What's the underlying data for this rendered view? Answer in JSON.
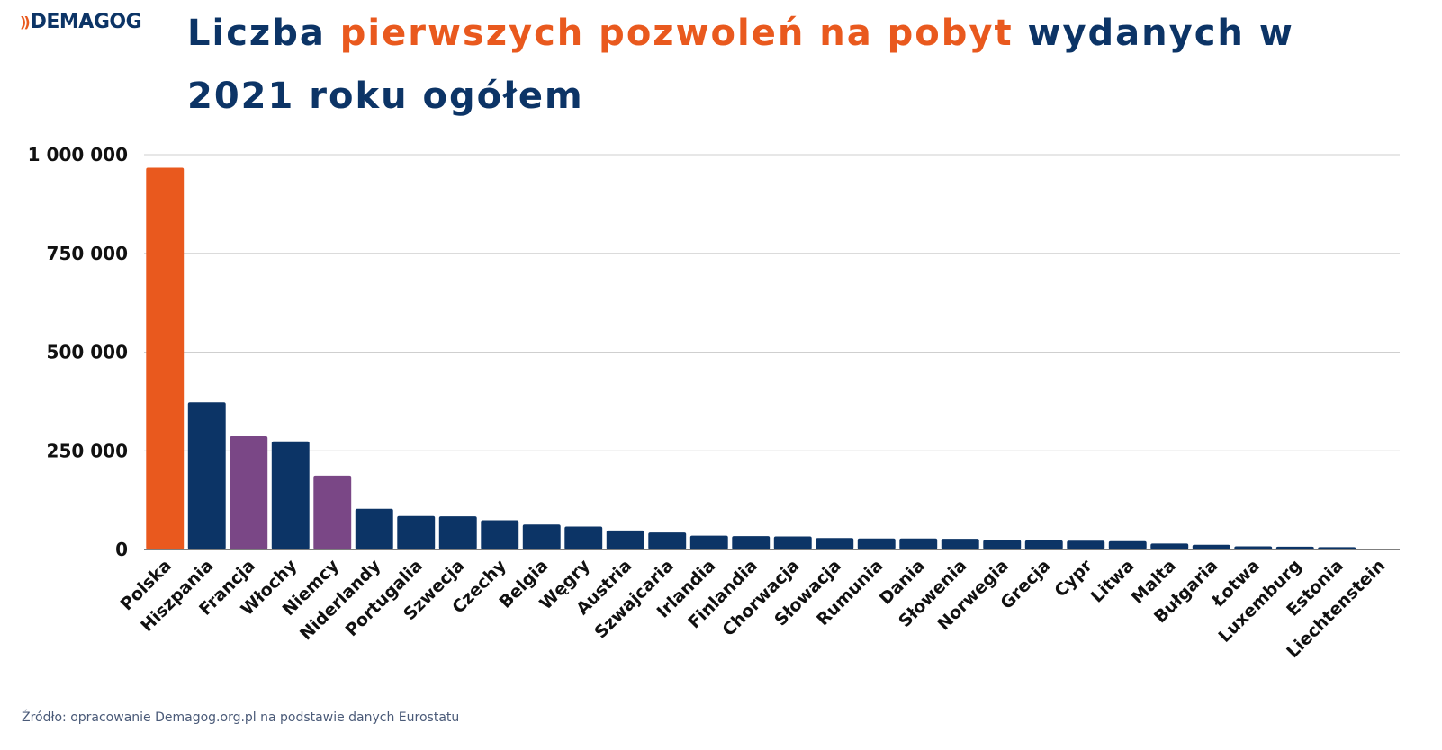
{
  "logo": {
    "mark": "))",
    "text": "DEMAGOG"
  },
  "title": {
    "part1": "Liczba ",
    "accent": "pierwszych pozwoleń na pobyt",
    "part2": " wydanych  w 2021 roku ogółem"
  },
  "colors": {
    "orange": "#e9591e",
    "navy": "#0c3466",
    "purple": "#7a4786",
    "grid": "#cfcfcf"
  },
  "source": "Źródło: opracowanie Demagog.org.pl na podstawie danych Eurostatu",
  "chart_data": {
    "type": "bar",
    "title": "Liczba pierwszych pozwoleń na pobyt wydanych  w 2021 roku ogółem",
    "xlabel": "",
    "ylabel": "",
    "ylim": [
      0,
      1000000
    ],
    "yticks": [
      0,
      250000,
      500000,
      750000,
      1000000
    ],
    "ytick_labels": [
      "0",
      "250 000",
      "500 000",
      "750 000",
      "1 000 000"
    ],
    "grid": true,
    "categories": [
      "Polska",
      "Hiszpania",
      "Francja",
      "Włochy",
      "Niemcy",
      "Niderlandy",
      "Portugalia",
      "Szwecja",
      "Czechy",
      "Belgia",
      "Węgry",
      "Austria",
      "Szwajcaria",
      "Irlandia",
      "Finlandia",
      "Chorwacja",
      "Słowacja",
      "Rumunia",
      "Dania",
      "Słowenia",
      "Norwegia",
      "Grecja",
      "Cypr",
      "Litwa",
      "Malta",
      "Bułgaria",
      "Łotwa",
      "Luxemburg",
      "Estonia",
      "Liechtenstein"
    ],
    "values": [
      967000,
      373000,
      287000,
      274000,
      187000,
      103000,
      85000,
      84000,
      74000,
      63000,
      58000,
      48000,
      43000,
      35000,
      34000,
      33000,
      29000,
      28000,
      28000,
      27000,
      24000,
      23000,
      22000,
      21000,
      15000,
      12000,
      8000,
      7000,
      6000,
      1000
    ],
    "bar_colors": [
      "#e9591e",
      "#0c3466",
      "#7a4786",
      "#0c3466",
      "#7a4786",
      "#0c3466",
      "#0c3466",
      "#0c3466",
      "#0c3466",
      "#0c3466",
      "#0c3466",
      "#0c3466",
      "#0c3466",
      "#0c3466",
      "#0c3466",
      "#0c3466",
      "#0c3466",
      "#0c3466",
      "#0c3466",
      "#0c3466",
      "#0c3466",
      "#0c3466",
      "#0c3466",
      "#0c3466",
      "#0c3466",
      "#0c3466",
      "#0c3466",
      "#0c3466",
      "#0c3466",
      "#0c3466"
    ]
  }
}
